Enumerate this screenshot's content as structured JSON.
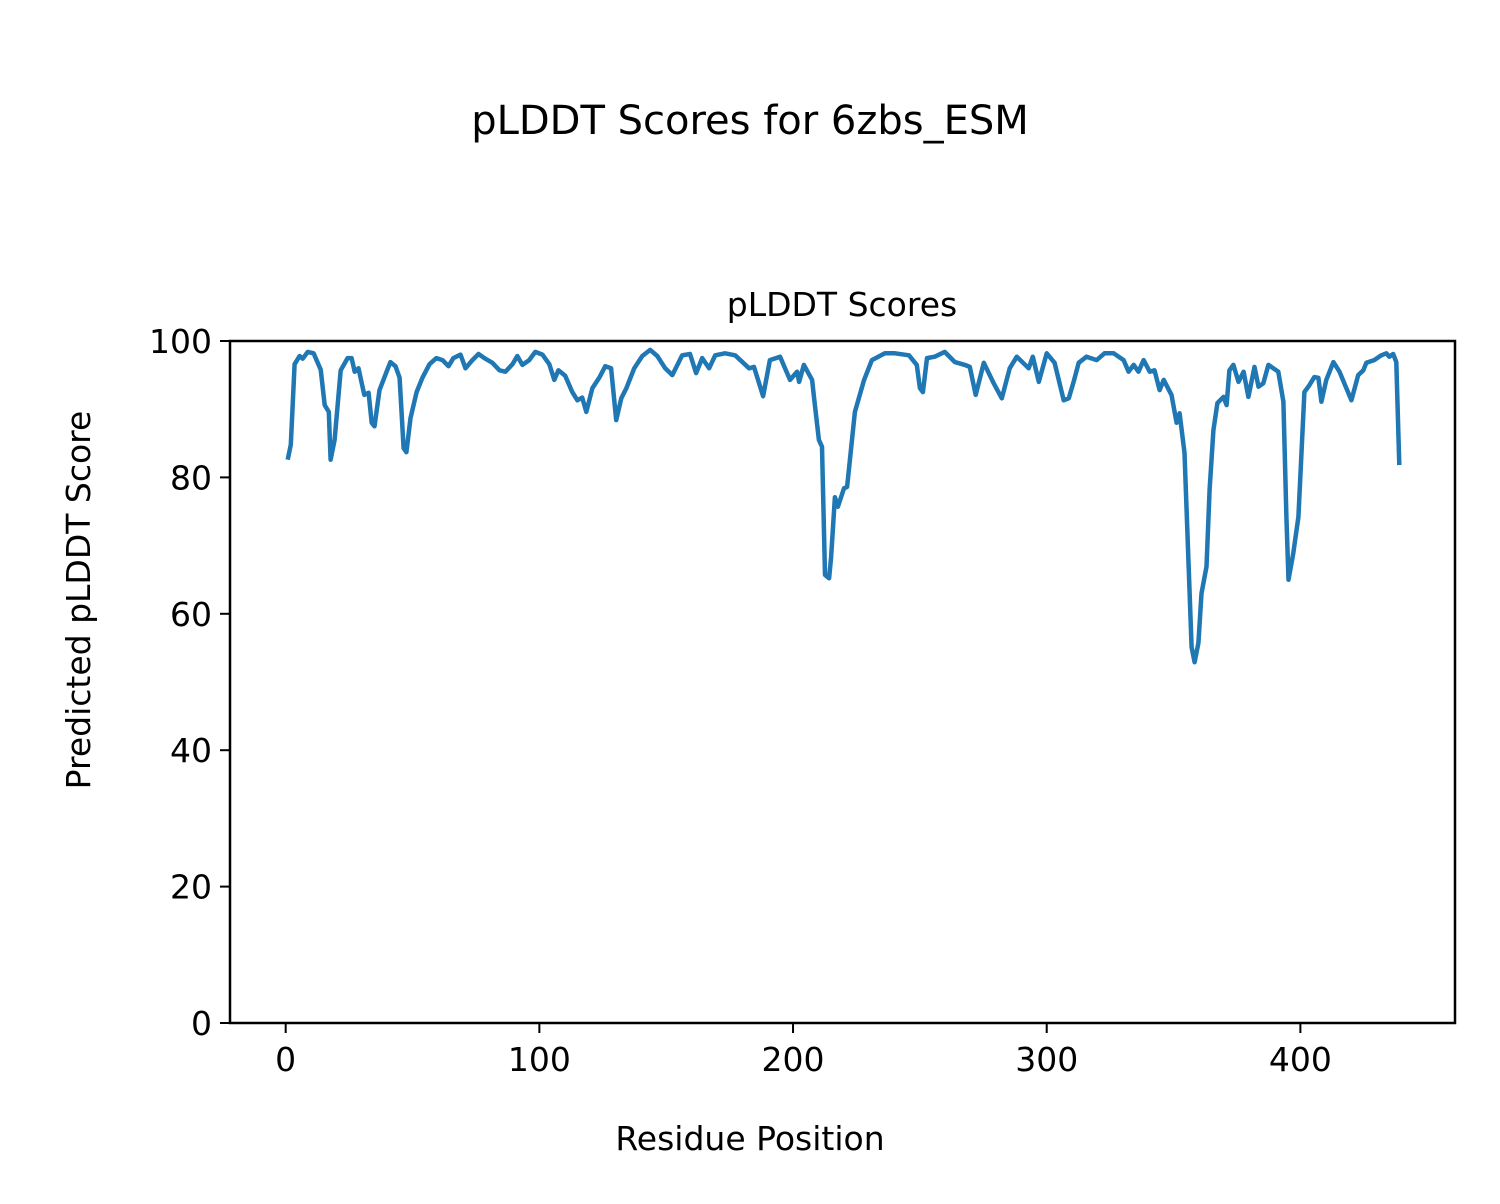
{
  "chart_data": {
    "type": "line",
    "suptitle": "pLDDT Scores for 6zbs_ESM",
    "title": "pLDDT Scores",
    "xlabel": "Residue Position",
    "ylabel": "Predicted pLDDT Score",
    "xlim": [
      -21.95,
      460.95
    ],
    "ylim": [
      0,
      100
    ],
    "xticks": [
      0,
      100,
      200,
      300,
      400
    ],
    "yticks": [
      0,
      20,
      40,
      60,
      80,
      100
    ],
    "grid": false,
    "line_color": "#1f77b4",
    "series": [
      {
        "x": [
          0.8,
          2,
          3.5,
          5.5,
          6.7,
          8.7,
          11,
          13.8,
          15.4,
          17,
          17.7,
          19.3,
          21.7,
          24.4,
          26,
          27.2,
          28.7,
          31,
          32.7,
          33.9,
          35,
          37,
          39.8,
          41.3,
          43.3,
          44.9,
          46.5,
          47.6,
          49.2,
          51.6,
          53.9,
          56.7,
          59.4,
          61.8,
          64.2,
          66.1,
          68.9,
          70.9,
          73.6,
          76,
          78.3,
          81.5,
          84.3,
          86.6,
          89.4,
          91.3,
          93.3,
          96,
          98.4,
          101.2,
          103.9,
          105.9,
          107.5,
          110.2,
          113,
          115,
          116.9,
          118.5,
          120.9,
          123.6,
          126,
          128.3,
          130.3,
          132.3,
          134.3,
          137.4,
          140.6,
          143.7,
          146.5,
          149.6,
          152.4,
          156.3,
          159.4,
          161.8,
          164.2,
          166.9,
          169.3,
          173.2,
          177.2,
          182.7,
          184.6,
          188.2,
          190.9,
          194.9,
          198.8,
          201.6,
          202.4,
          204.3,
          207.5,
          208.3,
          210.2,
          211.4,
          212.6,
          214.2,
          215,
          216.5,
          217.7,
          220.1,
          221.3,
          224.4,
          228,
          231.1,
          236.2,
          240.2,
          245.7,
          248.8,
          250,
          251.2,
          252.8,
          255.9,
          259.8,
          263.8,
          267.7,
          269.7,
          272,
          275.2,
          279.1,
          282.3,
          285.4,
          288.2,
          292.9,
          294.5,
          296.9,
          300,
          303.1,
          306.7,
          308.7,
          310.6,
          312.6,
          315.7,
          319.7,
          322.8,
          326.4,
          330.3,
          332.3,
          334.3,
          336.2,
          338.2,
          340.6,
          342.5,
          344.5,
          346.1,
          349.2,
          351.2,
          352.4,
          354.3,
          357.1,
          358.3,
          359.8,
          361,
          363,
          364.2,
          365.7,
          367.3,
          369.7,
          370.9,
          372,
          373.6,
          375.6,
          377.6,
          379.5,
          381.9,
          383.5,
          385.4,
          387.4,
          391.3,
          393.3,
          394.5,
          395.3,
          397.2,
          399.2,
          401.6,
          403.5,
          405.5,
          407.1,
          408.3,
          410.2,
          413,
          415.4,
          417.3,
          420.1,
          422.8,
          424.8,
          426,
          429.1,
          431.9,
          433.9,
          435,
          436.6,
          437.8,
          439
        ],
        "y": [
          82.6,
          84.8,
          96.6,
          97.8,
          97.4,
          98.4,
          98.2,
          95.8,
          90.6,
          89.6,
          82.6,
          85.5,
          95.7,
          97.5,
          97.5,
          95.5,
          96,
          92.1,
          92.4,
          88,
          87.5,
          92.8,
          95.5,
          96.9,
          96.3,
          94.6,
          84.3,
          83.7,
          88.7,
          92.5,
          94.6,
          96.6,
          97.5,
          97.2,
          96.3,
          97.5,
          98,
          96,
          97.2,
          98.1,
          97.5,
          96.8,
          95.7,
          95.5,
          96.6,
          97.8,
          96.5,
          97.2,
          98.4,
          98,
          96.6,
          94.3,
          95.7,
          94.9,
          92.5,
          91.3,
          91.7,
          89.6,
          93.1,
          94.6,
          96.3,
          96,
          88.4,
          91.6,
          93.1,
          96,
          97.8,
          98.7,
          97.8,
          96,
          95,
          97.9,
          98.1,
          95.3,
          97.5,
          96,
          97.9,
          98.2,
          97.9,
          96,
          96.2,
          91.9,
          97.2,
          97.7,
          94.3,
          95.5,
          94,
          96.5,
          94.3,
          91.6,
          85.5,
          84.5,
          65.7,
          65.2,
          68.3,
          77.1,
          75.7,
          78.4,
          78.6,
          89.6,
          94.3,
          97.2,
          98.2,
          98.2,
          97.9,
          96.5,
          93.1,
          92.5,
          97.5,
          97.7,
          98.4,
          96.9,
          96.5,
          96.2,
          92.1,
          96.8,
          93.8,
          91.6,
          96,
          97.7,
          96,
          97.7,
          94,
          98.2,
          96.8,
          91.3,
          91.6,
          94,
          96.8,
          97.7,
          97.2,
          98.2,
          98.2,
          97.2,
          95.5,
          96.5,
          95.5,
          97.2,
          95.5,
          95.7,
          92.8,
          94.3,
          92.1,
          88,
          89.4,
          83.6,
          55.1,
          52.9,
          55.7,
          63,
          66.9,
          78.2,
          86.9,
          90.9,
          91.8,
          90.6,
          95.7,
          96.5,
          94,
          95.5,
          91.8,
          96.2,
          93.3,
          93.8,
          96.5,
          95.5,
          91.1,
          74.2,
          65,
          68.9,
          74.2,
          92.5,
          93.5,
          94.7,
          94.6,
          91.1,
          94.3,
          96.9,
          95.5,
          93.8,
          91.3,
          95,
          95.7,
          96.8,
          97.2,
          97.9,
          98.2,
          97.7,
          98.1,
          96.9,
          81.8
        ]
      }
    ]
  }
}
